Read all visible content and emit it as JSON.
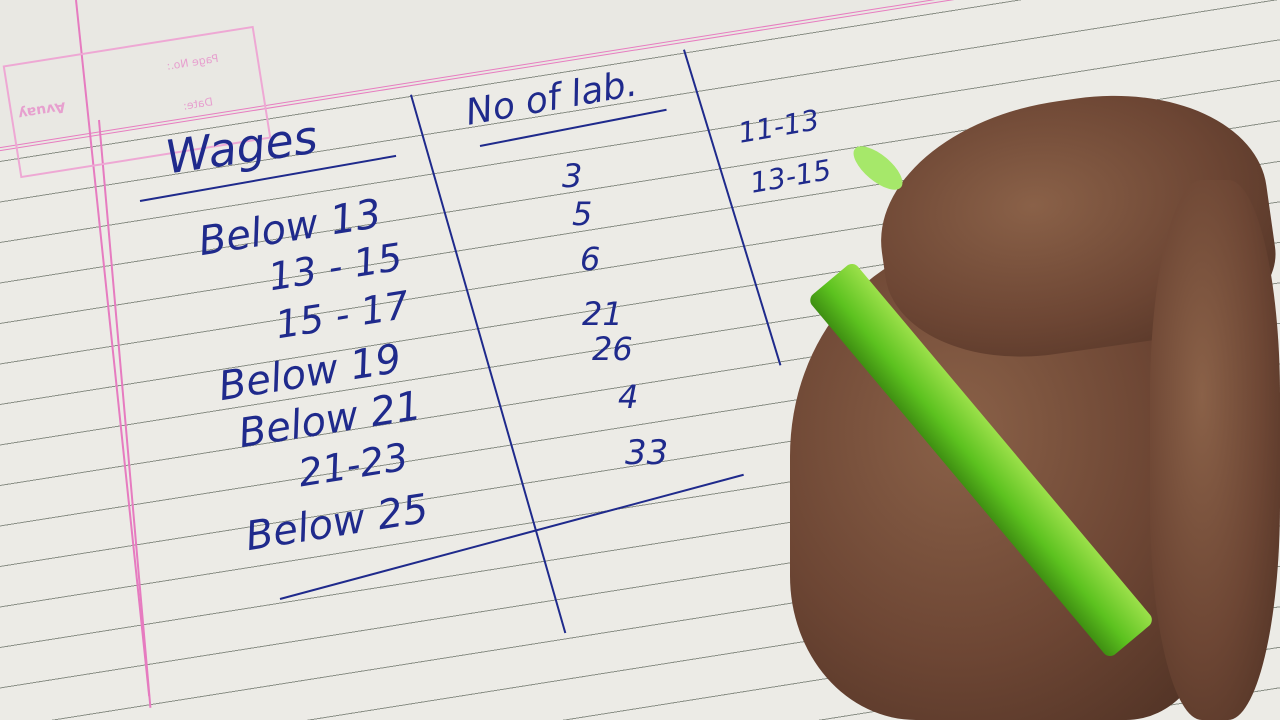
{
  "notebook_stamp": {
    "brand": "Avuay",
    "page_no_label": "Page No.:",
    "date_label": "Date:"
  },
  "table": {
    "headers": [
      "Wages",
      "No of lab."
    ],
    "wages": [
      "Below 13",
      "13 - 15",
      "15 - 17",
      "Below 19",
      "Below 21",
      "21-23",
      "Below 25"
    ],
    "counts": [
      "3",
      "5",
      "6",
      "21",
      "26",
      "4",
      "33"
    ],
    "class_intervals": [
      "11-13",
      "13-15"
    ]
  },
  "colors": {
    "ink": "#1f2a8c",
    "margin": "#e67bc0",
    "pen": "#5cc21f",
    "skin": "#6d4634"
  }
}
